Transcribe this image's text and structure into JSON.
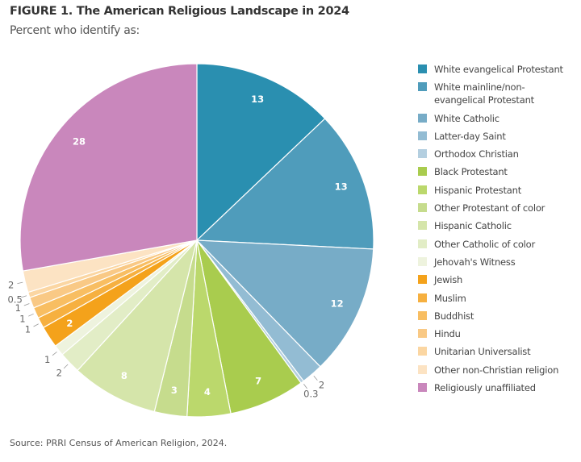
{
  "title": "FIGURE 1.  The American Religious Landscape in 2024",
  "subtitle": "Percent who identify as:",
  "source": "Source: PRRI Census of American Religion, 2024.",
  "chart_data": {
    "type": "pie",
    "start": "top, clockwise",
    "legend_position": "right",
    "slices": [
      {
        "name": "White evangelical Protestant",
        "value": 13,
        "label": "13",
        "label_position": "inside",
        "color": "#2a8fb0"
      },
      {
        "name": "White mainline/non-evangelical Protestant",
        "value": 13,
        "label": "13",
        "label_position": "inside",
        "color": "#4f9cbb"
      },
      {
        "name": "White Catholic",
        "value": 12,
        "label": "12",
        "label_position": "inside",
        "color": "#77acc7"
      },
      {
        "name": "Latter-day Saint",
        "value": 2,
        "label": "2",
        "label_position": "outside",
        "color": "#93bcd3"
      },
      {
        "name": "Orthodox Christian",
        "value": 0.3,
        "label": "0.3",
        "label_position": "outside",
        "color": "#b4cfe0"
      },
      {
        "name": "Black Protestant",
        "value": 7,
        "label": "7",
        "label_position": "inside",
        "color": "#a9cc4e"
      },
      {
        "name": "Hispanic Protestant",
        "value": 4,
        "label": "4",
        "label_position": "inside",
        "color": "#bbd86c"
      },
      {
        "name": "Other Protestant of color",
        "value": 3,
        "label": "3",
        "label_position": "inside",
        "color": "#c6dc8d"
      },
      {
        "name": "Hispanic Catholic",
        "value": 8,
        "label": "8",
        "label_position": "inside",
        "color": "#d5e5aa"
      },
      {
        "name": "Other Catholic of color",
        "value": 2,
        "label": "2",
        "label_position": "outside",
        "color": "#e2edc6"
      },
      {
        "name": "Jehovah's Witness",
        "value": 1,
        "label": "1",
        "label_position": "outside",
        "color": "#eef3de"
      },
      {
        "name": "Jewish",
        "value": 2,
        "label": "2",
        "label_position": "inside",
        "color": "#f4a21b"
      },
      {
        "name": "Muslim",
        "value": 1,
        "label": "1",
        "label_position": "outside",
        "color": "#f6b040"
      },
      {
        "name": "Buddhist",
        "value": 1,
        "label": "1",
        "label_position": "outside",
        "color": "#f8be62"
      },
      {
        "name": "Hindu",
        "value": 1,
        "label": "1",
        "label_position": "outside",
        "color": "#f9c985"
      },
      {
        "name": "Unitarian Universalist",
        "value": 0.5,
        "label": "0.5",
        "label_position": "outside",
        "color": "#fbd6a2"
      },
      {
        "name": "Other non-Christian religion",
        "value": 2,
        "label": "2",
        "label_position": "outside",
        "color": "#fce3c3"
      },
      {
        "name": "Religiously unaffiliated",
        "value": 28,
        "label": "28",
        "label_position": "inside",
        "color": "#c987bc"
      }
    ],
    "legend": [
      "White evangelical Protestant",
      "White mainline/non-\nevangelical Protestant",
      "White Catholic",
      "Latter-day Saint",
      "Orthodox Christian",
      "Black Protestant",
      "Hispanic Protestant",
      "Other Protestant of color",
      "Hispanic Catholic",
      "Other Catholic of color",
      "Jehovah's Witness",
      "Jewish",
      "Muslim",
      "Buddhist",
      "Hindu",
      "Unitarian Universalist",
      "Other non-Christian religion",
      "Religiously unaffiliated"
    ]
  }
}
